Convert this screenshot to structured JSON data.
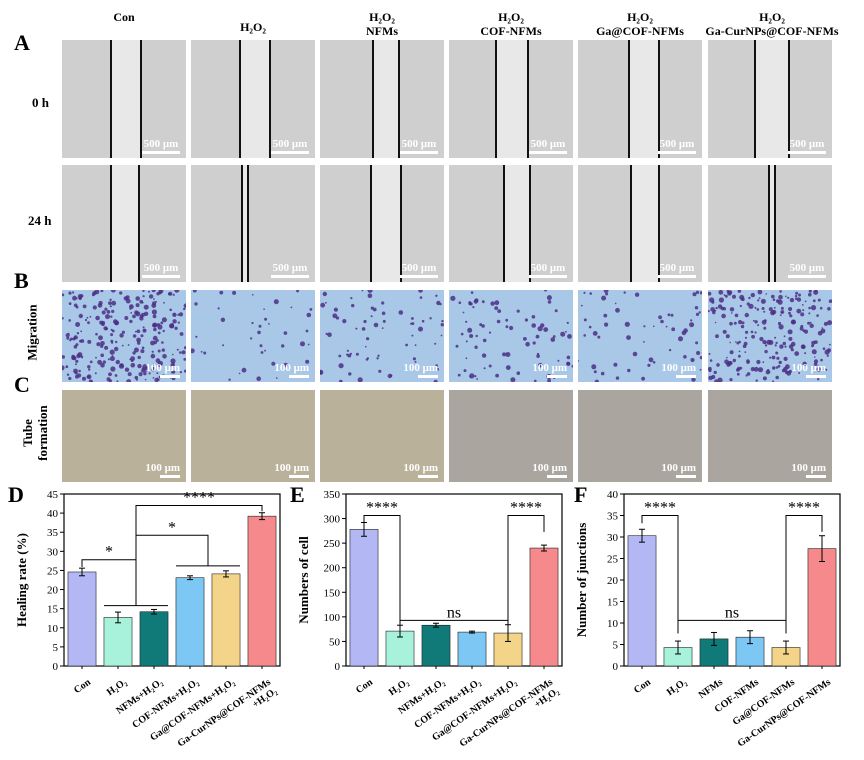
{
  "panel_letters": {
    "a": "A",
    "b": "B",
    "c": "C",
    "d": "D",
    "e": "E",
    "f": "F"
  },
  "column_headers": [
    {
      "line1": "Con",
      "line2": ""
    },
    {
      "line1": "H₂O₂",
      "line2": ""
    },
    {
      "line1": "H₂O₂",
      "line2": "NFMs"
    },
    {
      "line1": "H₂O₂",
      "line2": "COF-NFMs"
    },
    {
      "line1": "H₂O₂",
      "line2": "Ga@COF-NFMs"
    },
    {
      "line1": "H₂O₂",
      "line2": "Ga-CurNPs@COF-NFMs"
    }
  ],
  "row_labels": {
    "t0": "0 h",
    "t24": "24 h",
    "migration": "Migration",
    "tube_line1": "Tube",
    "tube_line2": "formation"
  },
  "scale_bars": {
    "wound": "500 μm",
    "micro": "100 μm"
  },
  "colors": {
    "wound_bg": "#cfcfcf",
    "wound_gap": "#e8e8e8",
    "migration_bg": "#a9c7e6",
    "migration_dots": "#4b2f86",
    "tube_warm": "#b9b19a",
    "tube_gray": "#aaa59f",
    "bars": [
      "#b3b8f5",
      "#a8f2dc",
      "#0f7a78",
      "#7cc7f4",
      "#f4d488",
      "#f5898b"
    ]
  },
  "chart_data": [
    {
      "type": "bar",
      "panel": "D",
      "ylabel": "Healing rate (%)",
      "ylim": [
        0,
        45
      ],
      "yticks": [
        0,
        5,
        10,
        15,
        20,
        25,
        30,
        35,
        40,
        45
      ],
      "categories": [
        "Con",
        "H₂O₂",
        "NFMs+H₂O₂",
        "COF-NFMs+H₂O₂",
        "Ga@COF-NFMs+H₂O₂",
        "Ga-CurNPs@COF-NFMs +H₂O₂"
      ],
      "tick_labels": [
        [
          "Con"
        ],
        [
          "H₂O₂"
        ],
        [
          "NFMs+H₂O₂"
        ],
        [
          "COF-NFMs+H₂O₂"
        ],
        [
          "Ga@COF-NFMs+H₂O₂"
        ],
        [
          "Ga-CurNPs@COF-NFMs",
          "+H₂O₂"
        ]
      ],
      "values": [
        24.6,
        12.7,
        14.2,
        23.1,
        24.1,
        39.2
      ],
      "errors": [
        1.0,
        1.4,
        0.6,
        0.5,
        0.8,
        0.9
      ],
      "significance": [
        "*",
        "*",
        "****"
      ]
    },
    {
      "type": "bar",
      "panel": "E",
      "ylabel": "Numbers of cell",
      "ylim": [
        0,
        350
      ],
      "yticks": [
        0,
        50,
        100,
        150,
        200,
        250,
        300,
        350
      ],
      "categories": [
        "Con",
        "H₂O₂",
        "NFMs+H₂O₂",
        "COF-NFMs+H₂O₂",
        "Ga@COF-NFMs+H₂O₂",
        "Ga-CurNPs@COF-NFMs +H₂O₂"
      ],
      "tick_labels": [
        [
          "Con"
        ],
        [
          "H₂O₂"
        ],
        [
          "NFMs+H₂O₂"
        ],
        [
          "COF-NFMs+H₂O₂"
        ],
        [
          "Ga@COF-NFMs+H₂O₂"
        ],
        [
          "Ga-CurNPs@COF-NFMs",
          "+H₂O₂"
        ]
      ],
      "values": [
        278,
        71,
        83,
        69,
        67,
        240
      ],
      "errors": [
        14,
        12,
        4,
        2,
        17,
        6
      ],
      "significance": [
        "****",
        "ns",
        "****"
      ]
    },
    {
      "type": "bar",
      "panel": "F",
      "ylabel": "Number of junctions",
      "ylim": [
        0,
        40
      ],
      "yticks": [
        0,
        5,
        10,
        15,
        20,
        25,
        30,
        35,
        40
      ],
      "categories": [
        "Con",
        "H₂O₂",
        "NFMs",
        "COF-NFMs",
        "Ga@COF-NFMs",
        "Ga-CurNPs@COF-NFMs"
      ],
      "tick_labels": [
        [
          "Con"
        ],
        [
          "H₂O₂"
        ],
        [
          "NFMs"
        ],
        [
          "COF-NFMs"
        ],
        [
          "Ga@COF-NFMs"
        ],
        [
          "Ga-CurNPs@COF-NFMs"
        ]
      ],
      "values": [
        30.3,
        4.3,
        6.3,
        6.7,
        4.3,
        27.3
      ],
      "errors": [
        1.5,
        1.5,
        1.5,
        1.5,
        1.5,
        3.0
      ],
      "significance": [
        "****",
        "ns",
        "****"
      ]
    }
  ]
}
